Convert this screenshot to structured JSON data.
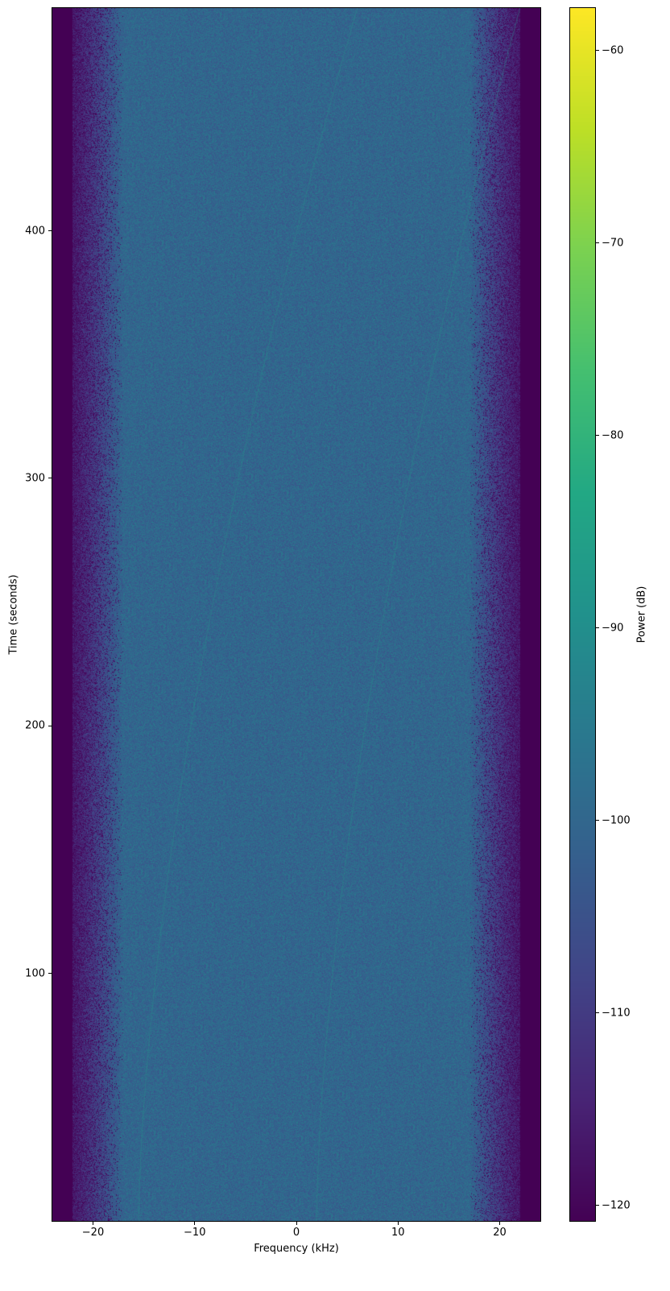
{
  "chart_data": {
    "type": "heatmap",
    "subtype": "spectrogram",
    "title": "",
    "xlabel": "Frequency (kHz)",
    "ylabel": "Time (seconds)",
    "xlim": [
      -24,
      24
    ],
    "ylim": [
      0,
      490
    ],
    "xticks": [
      -20,
      -10,
      0,
      10,
      20
    ],
    "yticks": [
      100,
      200,
      300,
      400
    ],
    "grid": false,
    "colormap": "viridis",
    "colorbar": {
      "label": "Power (dB)",
      "range": [
        -120.8,
        -57.8
      ],
      "ticks": [
        -120,
        -110,
        -100,
        -90,
        -80,
        -70,
        -60
      ]
    },
    "passband_khz": [
      -17,
      17
    ],
    "passband_level_db": -100,
    "rolloff_khz": [
      [
        -22,
        -17
      ],
      [
        17,
        22
      ]
    ],
    "floor_level_db": -120.8,
    "faint_traces": [
      {
        "freq_khz_at_t0": -15.5,
        "freq_khz_at_t490": 6
      },
      {
        "freq_khz_at_t0": 2,
        "freq_khz_at_t490": 22
      }
    ]
  }
}
